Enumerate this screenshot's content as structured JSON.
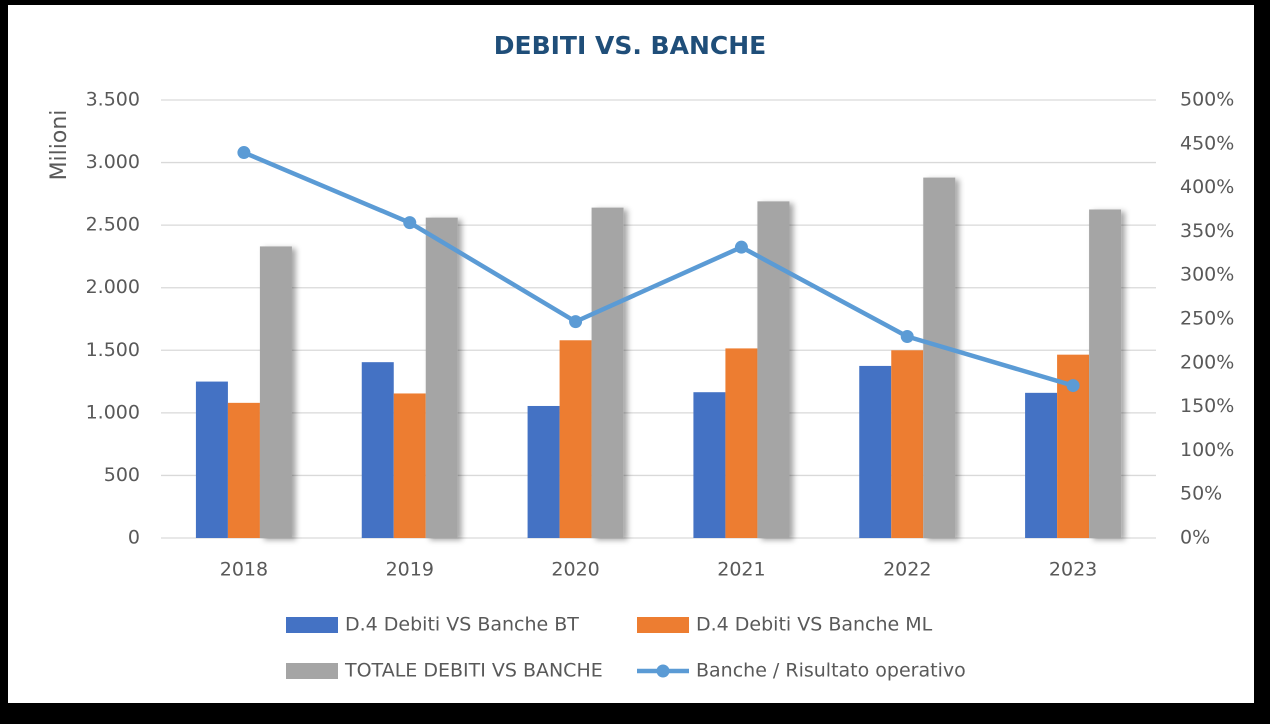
{
  "chart_data": {
    "type": "bar",
    "title": "DEBITI VS. BANCHE",
    "y_label": "Milioni",
    "categories": [
      "2018",
      "2019",
      "2020",
      "2021",
      "2022",
      "2023"
    ],
    "series": [
      {
        "name": "D.4 Debiti VS Banche BT",
        "color": "#4472c4",
        "values": [
          1250,
          1405,
          1055,
          1165,
          1375,
          1160
        ]
      },
      {
        "name": "D.4 Debiti VS Banche ML",
        "color": "#ed7d31",
        "values": [
          1080,
          1155,
          1580,
          1515,
          1500,
          1465
        ]
      },
      {
        "name": "TOTALE DEBITI VS BANCHE",
        "color": "#a5a5a5",
        "values": [
          2330,
          2560,
          2640,
          2690,
          2880,
          2625
        ]
      },
      {
        "name": "Banche / Risultato operativo",
        "color": "#5b9bd5",
        "type": "line",
        "axis": "y2",
        "values": [
          440,
          360,
          247,
          332,
          230,
          174
        ]
      }
    ],
    "ylim": [
      0,
      3500
    ],
    "yticks": [
      0,
      500,
      {
        "value": 1000,
        "label": "1.000"
      },
      {
        "value": 1500,
        "label": "1.500"
      },
      {
        "value": 2000,
        "label": "2.000"
      },
      {
        "value": 2500,
        "label": "2.500"
      },
      {
        "value": 3000,
        "label": "3.000"
      },
      {
        "value": 3500,
        "label": "3.500"
      }
    ],
    "y2lim": [
      0,
      500
    ],
    "y2ticks": [
      {
        "value": 0,
        "label": "0%"
      },
      {
        "value": 50,
        "label": "50%"
      },
      {
        "value": 100,
        "label": "100%"
      },
      {
        "value": 150,
        "label": "150%"
      },
      {
        "value": 200,
        "label": "200%"
      },
      {
        "value": 250,
        "label": "250%"
      },
      {
        "value": 300,
        "label": "300%"
      },
      {
        "value": 350,
        "label": "350%"
      },
      {
        "value": 400,
        "label": "400%"
      },
      {
        "value": 450,
        "label": "450%"
      },
      {
        "value": 500,
        "label": "500%"
      }
    ],
    "grid": true,
    "legend": "bottom"
  }
}
